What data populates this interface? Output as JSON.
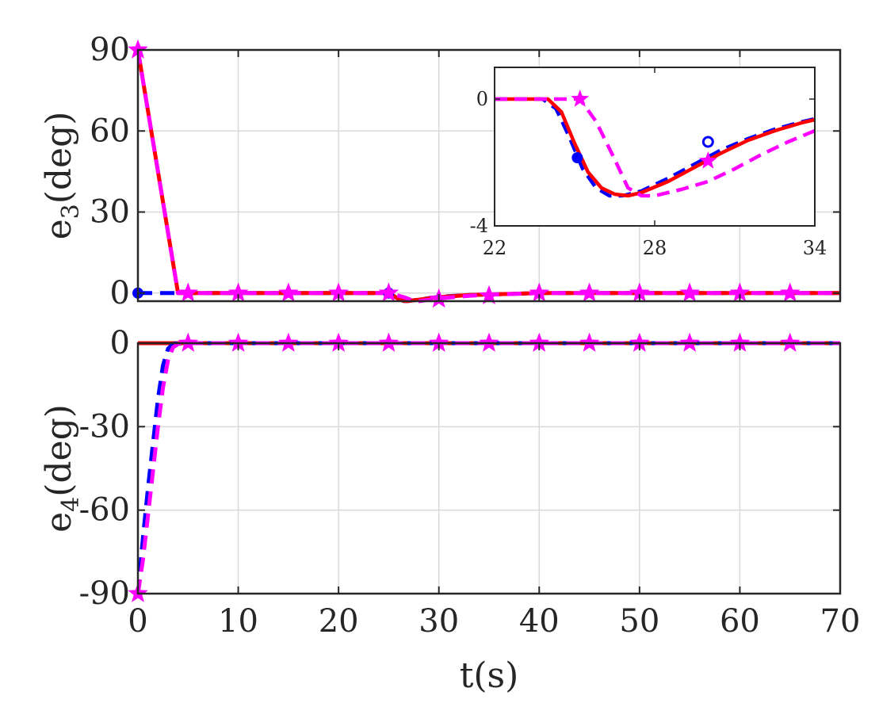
{
  "chart_data": [
    {
      "id": "top",
      "type": "line",
      "ylabel": {
        "main": "e",
        "sub": "3",
        "unit": "(deg)"
      },
      "xlim": [
        0,
        70
      ],
      "ylim": [
        -3,
        90
      ],
      "xticks": [
        0,
        10,
        20,
        30,
        40,
        50,
        60,
        70
      ],
      "yticks": [
        0,
        30,
        60,
        90
      ],
      "ytick_labels": [
        "0",
        "30",
        "60",
        "90"
      ],
      "grid": true,
      "series": [
        {
          "color": "#0000ff",
          "dash": "dashed",
          "marker": "circle",
          "x": [
            0,
            25,
            25.5,
            26,
            26.5,
            27,
            30,
            33,
            35,
            40,
            45,
            50,
            55,
            60,
            65,
            70
          ],
          "y": [
            0,
            0,
            -1.2,
            -2.3,
            -2.9,
            -2.9,
            -1.4,
            -0.7,
            -0.5,
            0,
            0,
            0,
            0,
            0,
            0,
            0
          ]
        },
        {
          "color": "#ff0000",
          "dash": "solid",
          "marker": "none",
          "x": [
            0,
            4,
            5,
            25,
            25.5,
            26,
            26.5,
            27,
            30,
            33,
            35,
            40,
            45,
            50,
            55,
            60,
            65,
            70
          ],
          "y": [
            90,
            0,
            0,
            0,
            -1,
            -2.3,
            -2.9,
            -2.9,
            -1.5,
            -0.7,
            -0.5,
            0,
            0,
            0,
            0,
            0,
            0,
            0
          ]
        },
        {
          "color": "#ff00ff",
          "dash": "dashed",
          "marker": "star",
          "x": [
            0,
            4,
            5,
            25,
            26.5,
            27.5,
            28,
            30,
            33,
            35,
            40,
            45,
            50,
            55,
            60,
            65,
            70
          ],
          "y": [
            90,
            0,
            0,
            0,
            -1.5,
            -2.9,
            -3,
            -2,
            -1,
            -0.6,
            0,
            0,
            0,
            0,
            0,
            0,
            0
          ]
        }
      ],
      "markers": [
        {
          "series": 0,
          "x": [
            0,
            25
          ]
        },
        {
          "series": 2,
          "x": [
            0,
            5,
            10,
            15,
            20,
            25,
            30,
            35,
            40,
            45,
            50,
            55,
            60,
            65
          ],
          "y": [
            90,
            0,
            0,
            0,
            0,
            0,
            -2.2,
            -1,
            0,
            0,
            0,
            0,
            0,
            0
          ]
        }
      ],
      "inset": {
        "xlim": [
          22,
          34
        ],
        "ylim": [
          -4,
          1
        ],
        "xticks": [
          22,
          28,
          34
        ],
        "xtick_labels": [
          "22",
          "28",
          "34"
        ],
        "yticks": [
          0,
          -4
        ],
        "ytick_labels": [
          "0",
          "-4"
        ],
        "series": [
          {
            "color": "#0000ff",
            "dash": "dashed",
            "x": [
              22,
              23.8,
              24.3,
              24.8,
              25.3,
              25.8,
              26.3,
              26.8,
              27.5,
              28.5,
              29.5,
              30.5,
              31.5,
              32.5,
              33.5,
              34
            ],
            "y": [
              0,
              0,
              -0.3,
              -1.2,
              -2.2,
              -2.8,
              -3.05,
              -3.05,
              -2.9,
              -2.5,
              -2.05,
              -1.6,
              -1.25,
              -0.95,
              -0.72,
              -0.62
            ]
          },
          {
            "color": "#ff0000",
            "dash": "solid",
            "x": [
              22,
              24,
              24.5,
              25,
              25.5,
              26,
              26.5,
              27,
              27.5,
              28.5,
              29.5,
              30.5,
              31.5,
              32.5,
              33.5,
              34
            ],
            "y": [
              0,
              0,
              -0.4,
              -1.4,
              -2.3,
              -2.8,
              -3.0,
              -3.05,
              -2.95,
              -2.6,
              -2.15,
              -1.7,
              -1.3,
              -1.0,
              -0.75,
              -0.65
            ]
          },
          {
            "color": "#ff00ff",
            "dash": "dashed",
            "x": [
              22,
              25.2,
              25.8,
              26.5,
              27,
              27.5,
              28,
              28.5,
              29,
              30,
              31,
              32,
              33,
              34
            ],
            "y": [
              0,
              0,
              -0.7,
              -1.9,
              -2.8,
              -3.05,
              -3.05,
              -2.95,
              -2.85,
              -2.6,
              -2.2,
              -1.75,
              -1.35,
              -1.0
            ]
          }
        ],
        "markers": [
          {
            "series": 0,
            "kind": "circle-filled",
            "x": 25.1,
            "y": -1.85
          },
          {
            "series": 0,
            "kind": "circle-open",
            "x": 30,
            "y": -1.35
          },
          {
            "series": 2,
            "kind": "star",
            "x": 25.2,
            "y": 0
          },
          {
            "series": 2,
            "kind": "star",
            "x": 30,
            "y": -1.95
          }
        ]
      }
    },
    {
      "id": "bottom",
      "type": "line",
      "ylabel": {
        "main": "e",
        "sub": "4",
        "unit": "(deg)"
      },
      "xlabel": "t(s)",
      "xlim": [
        0,
        70
      ],
      "ylim": [
        -90,
        0
      ],
      "xticks": [
        0,
        10,
        20,
        30,
        40,
        50,
        60,
        70
      ],
      "xtick_labels": [
        "0",
        "10",
        "20",
        "30",
        "40",
        "50",
        "60",
        "70"
      ],
      "yticks": [
        0,
        -30,
        -60,
        -90
      ],
      "ytick_labels": [
        "0",
        "-30",
        "-60",
        "-90"
      ],
      "grid": true,
      "series": [
        {
          "color": "#ff0000",
          "dash": "solid",
          "marker": "none",
          "x": [
            0,
            70
          ],
          "y": [
            0,
            0
          ]
        },
        {
          "color": "#0000ff",
          "dash": "dashed",
          "marker": "none",
          "x": [
            0,
            0.5,
            1,
            1.5,
            2,
            2.5,
            3,
            3.5,
            4,
            5,
            70
          ],
          "y": [
            -90,
            -70,
            -52,
            -36,
            -20,
            -8,
            -2,
            -0.3,
            0,
            0,
            0
          ]
        },
        {
          "color": "#ff00ff",
          "dash": "dashed",
          "marker": "star",
          "x": [
            0,
            0.5,
            1,
            1.5,
            2,
            2.5,
            3,
            3.5,
            4,
            4.5,
            5,
            70
          ],
          "y": [
            -90,
            -78,
            -62,
            -46,
            -30,
            -16,
            -6,
            -1.5,
            -0.3,
            0,
            0,
            0
          ]
        }
      ],
      "markers": [
        {
          "series": 2,
          "x": [
            0,
            5,
            10,
            15,
            20,
            25,
            30,
            35,
            40,
            45,
            50,
            55,
            60,
            65
          ],
          "y": [
            -90,
            0,
            0,
            0,
            0,
            0,
            0,
            0,
            0,
            0,
            0,
            0,
            0,
            0
          ]
        }
      ]
    }
  ]
}
